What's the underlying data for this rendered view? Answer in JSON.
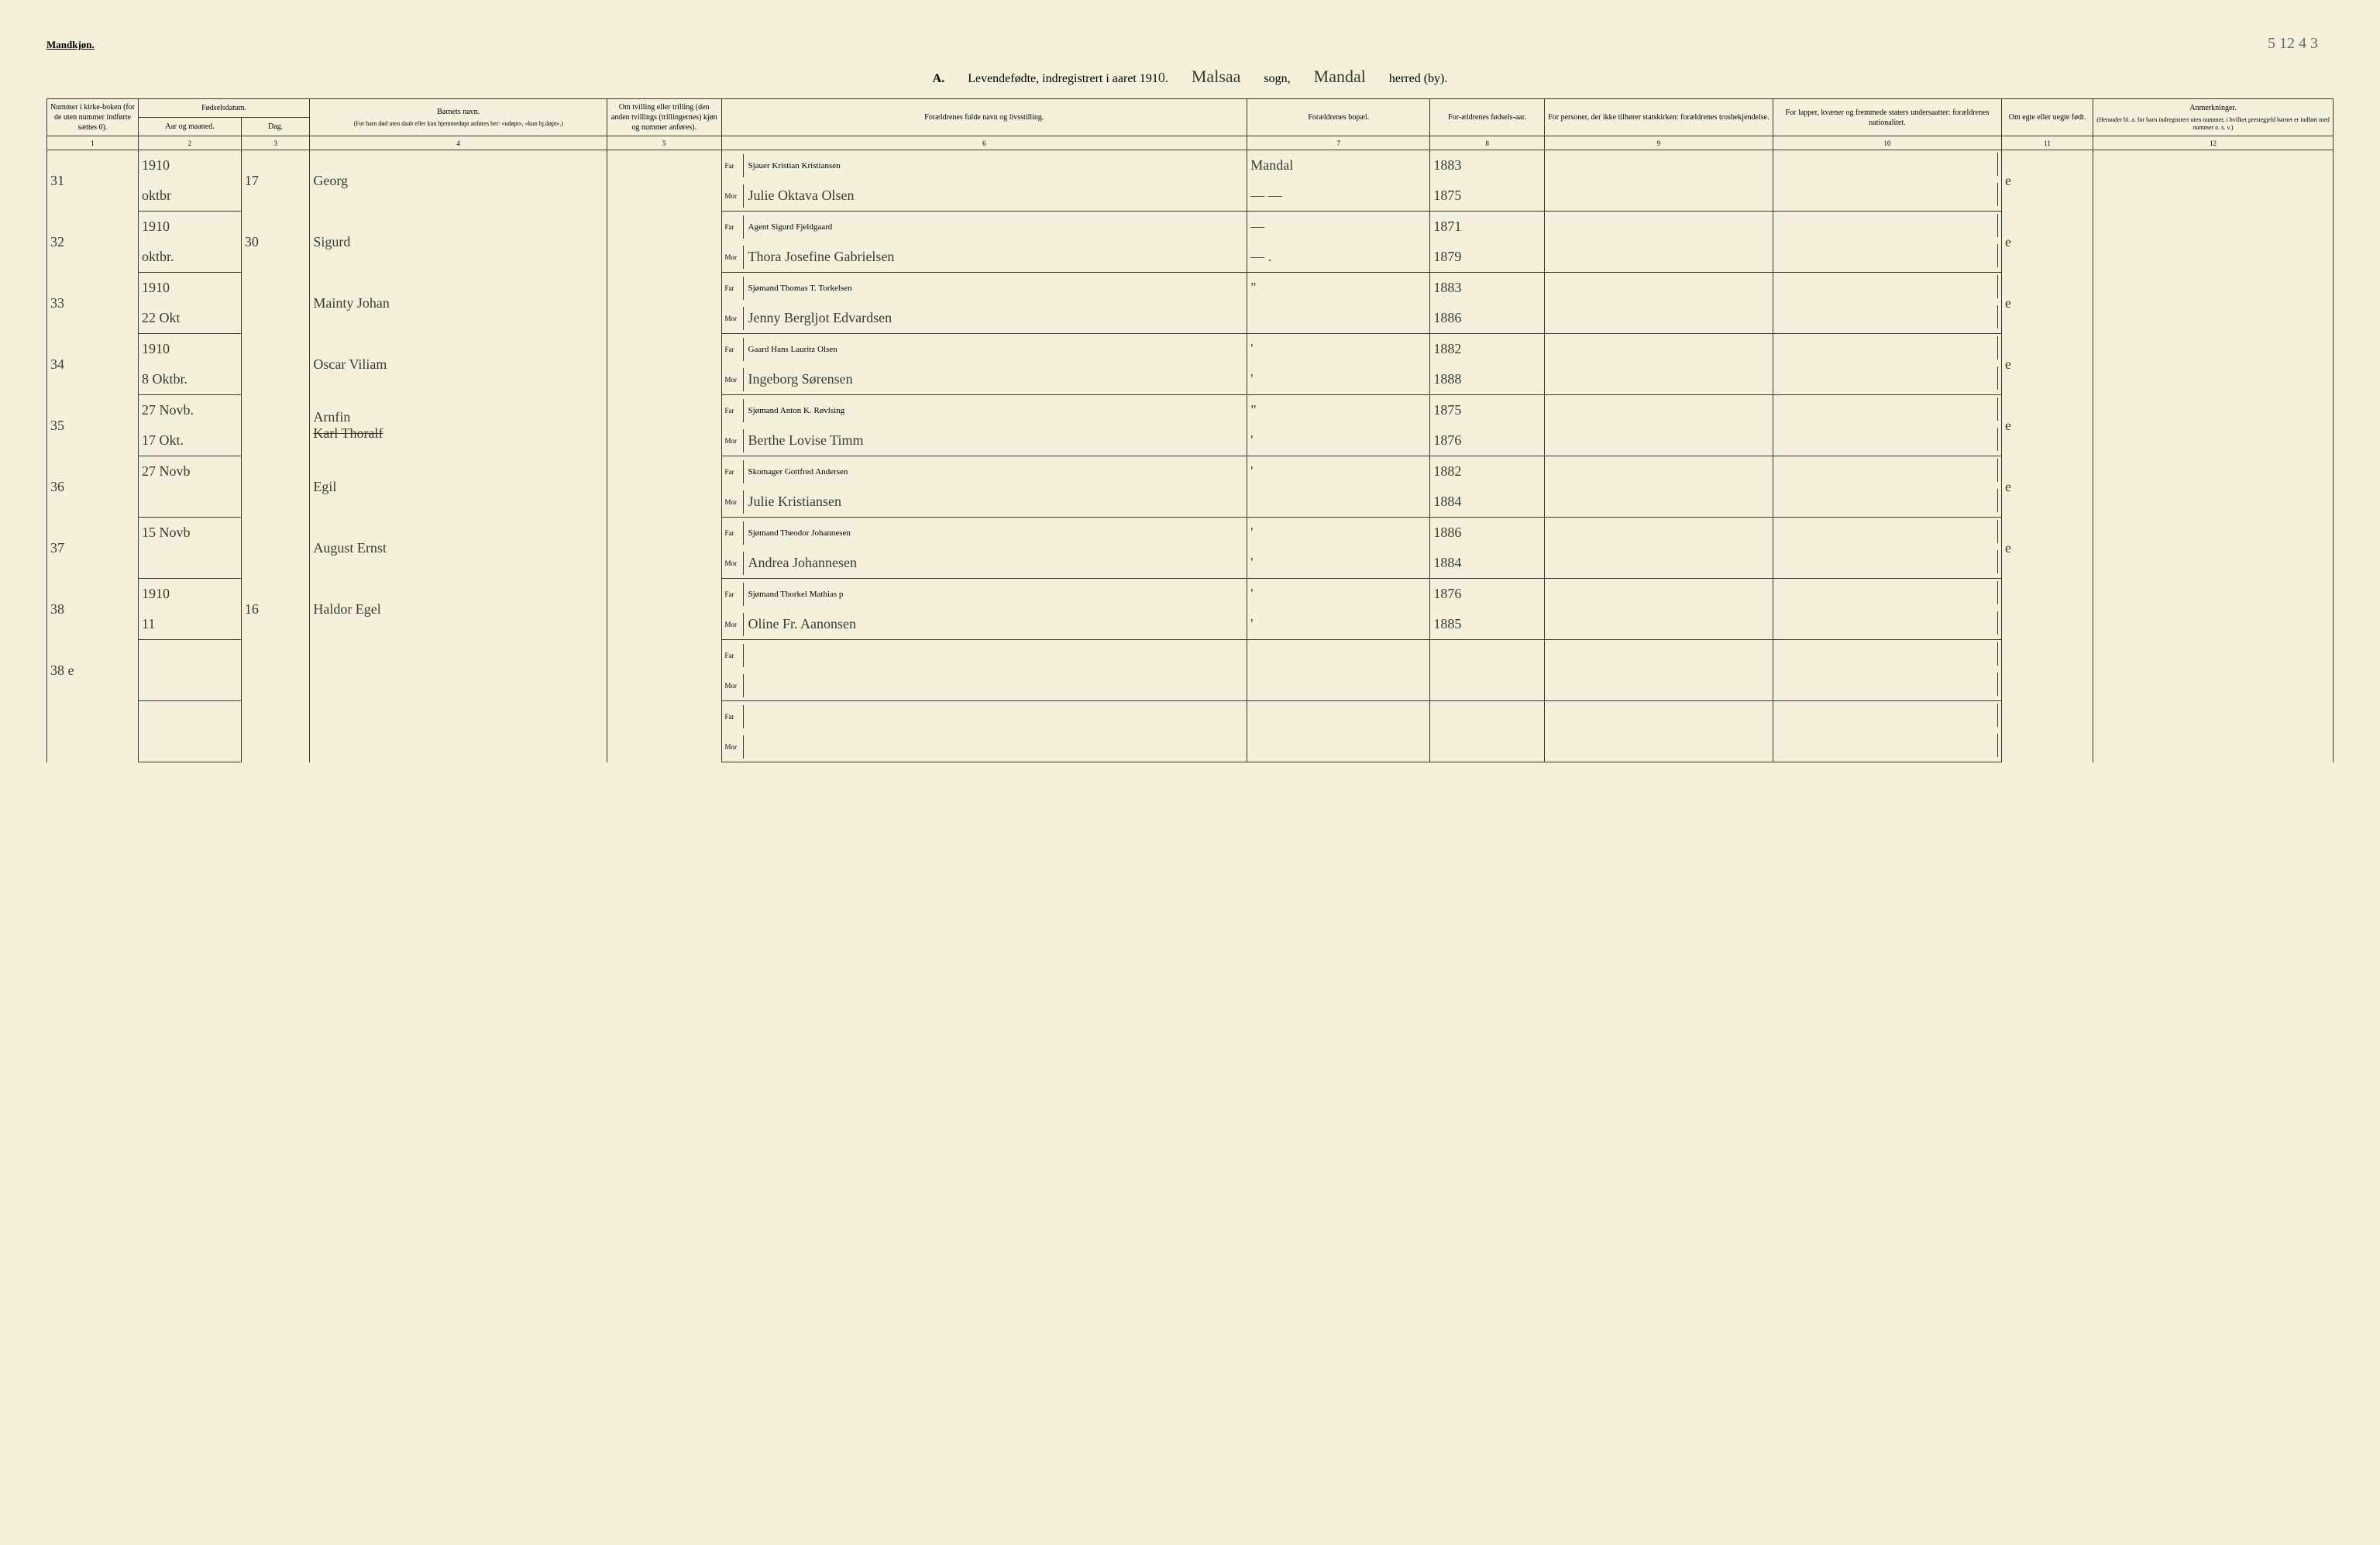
{
  "topRightNote": "5 12 4 3",
  "header": {
    "gender": "Mandkjøn.",
    "titlePrefix": "A.",
    "title": "Levendefødte, indregistrert i aaret 191",
    "year": "0",
    "sogn": "Malsaa",
    "sognLabel": "sogn,",
    "herred": "Mandal",
    "herredLabel": "herred (by)."
  },
  "columns": {
    "c1": "Nummer i kirke-boken (for de uten nummer indførte sættes 0).",
    "c2": "Fødselsdatum.",
    "c2a": "Aar og maaned.",
    "c2b": "Dag.",
    "c4": "Barnets navn.",
    "c4sub": "(For barn død uten daab eller kun hjemmedøpt anføres her: «udøpt», «kun hj.døpt».)",
    "c5": "Om tvilling eller trilling (den anden tvillings (trillingernes) kjøn og nummer anføres).",
    "c6": "Forældrenes fulde navn og livsstilling.",
    "c7": "Forældrenes bopæl.",
    "c8": "For-ældrenes fødsels-aar.",
    "c9": "For personer, der ikke tilhører statskirken: forældrenes trosbekjendelse.",
    "c10": "For lapper, kvæner og fremmede staters undersaatter: forældrenes nationalitet.",
    "c11": "Om egte eller uegte født.",
    "c12": "Anmerkninger.",
    "c12sub": "(Herunder bl. a. for barn indregistrert uten nummer, i hvilket prestegjeld barnet er indført med nummer o. s. v.)"
  },
  "colNumbers": [
    "1",
    "2",
    "3",
    "4",
    "5",
    "6",
    "7",
    "8",
    "9",
    "10",
    "11",
    "12"
  ],
  "farLabel": "Far",
  "morLabel": "Mor",
  "entries": [
    {
      "num": "31",
      "yearMonth": "1910",
      "yearMonth2": "oktbr",
      "day": "17",
      "childName": "Georg",
      "far": "Sjauer Kristian Kristiansen",
      "mor": "Julie Oktava Olsen",
      "bopaelFar": "Mandal",
      "bopaelMor": "— —",
      "yearFar": "1883",
      "yearMor": "1875",
      "legit": "e"
    },
    {
      "num": "32",
      "yearMonth": "1910",
      "yearMonth2": "oktbr.",
      "day": "30",
      "childName": "Sigurd",
      "far": "Agent Sigurd Fjeldgaard",
      "mor": "Thora Josefine Gabrielsen",
      "bopaelFar": "—",
      "bopaelMor": "— .",
      "yearFar": "1871",
      "yearMor": "1879",
      "legit": "e"
    },
    {
      "num": "33",
      "yearMonth": "1910",
      "yearMonth2": "22 Okt",
      "day": "",
      "childName": "Mainty Johan",
      "far": "Sjømand Thomas T. Torkelsen",
      "mor": "Jenny Bergljot Edvardsen",
      "bopaelFar": "\"",
      "bopaelMor": "",
      "yearFar": "1883",
      "yearMor": "1886",
      "legit": "e"
    },
    {
      "num": "34",
      "yearMonth": "1910",
      "yearMonth2": "8 Oktbr.",
      "day": "",
      "childName": "Oscar Viliam",
      "far": "Gaard Hans Lauritz Olsen",
      "mor": "Ingeborg Sørensen",
      "bopaelFar": "'",
      "bopaelMor": "'",
      "yearFar": "1882",
      "yearMor": "1888",
      "legit": "e"
    },
    {
      "num": "35",
      "yearMonth": "27 Novb.",
      "yearMonth2": "17 Okt.",
      "day": "",
      "childName": "Arnfin",
      "childNameStrike": "Karl Thoralf",
      "far": "Sjømand Anton K. Røvlsing",
      "mor": "Berthe Lovise Timm",
      "bopaelFar": "\"",
      "bopaelMor": "'",
      "yearFar": "1875",
      "yearMor": "1876",
      "legit": "e"
    },
    {
      "num": "36",
      "yearMonth": "27 Novb",
      "yearMonth2": "",
      "day": "",
      "childName": "Egil",
      "far": "Skomager Gottfred Andersen",
      "mor": "Julie Kristiansen",
      "bopaelFar": "'",
      "bopaelMor": "",
      "yearFar": "1882",
      "yearMor": "1884",
      "legit": "e"
    },
    {
      "num": "37",
      "yearMonth": "15 Novb",
      "yearMonth2": "",
      "day": "",
      "childName": "August Ernst",
      "far": "Sjømand Theodor Johannesen",
      "mor": "Andrea Johannesen",
      "bopaelFar": "'",
      "bopaelMor": "'",
      "yearFar": "1886",
      "yearMor": "1884",
      "legit": "e"
    },
    {
      "num": "38",
      "yearMonth": "1910",
      "yearMonth2": "11",
      "day": "16",
      "childName": "Haldor Egel",
      "far": "Sjømand Thorkel Mathias p",
      "mor": "Oline Fr. Aanonsen",
      "bopaelFar": "'",
      "bopaelMor": "'",
      "yearFar": "1876",
      "yearMor": "1885",
      "legit": ""
    },
    {
      "num": "38 e",
      "yearMonth": "",
      "yearMonth2": "",
      "day": "",
      "childName": "",
      "far": "",
      "mor": "",
      "bopaelFar": "",
      "bopaelMor": "",
      "yearFar": "",
      "yearMor": "",
      "legit": ""
    },
    {
      "num": "",
      "yearMonth": "",
      "yearMonth2": "",
      "day": "",
      "childName": "",
      "far": "",
      "mor": "",
      "bopaelFar": "",
      "bopaelMor": "",
      "yearFar": "",
      "yearMor": "",
      "legit": ""
    }
  ]
}
